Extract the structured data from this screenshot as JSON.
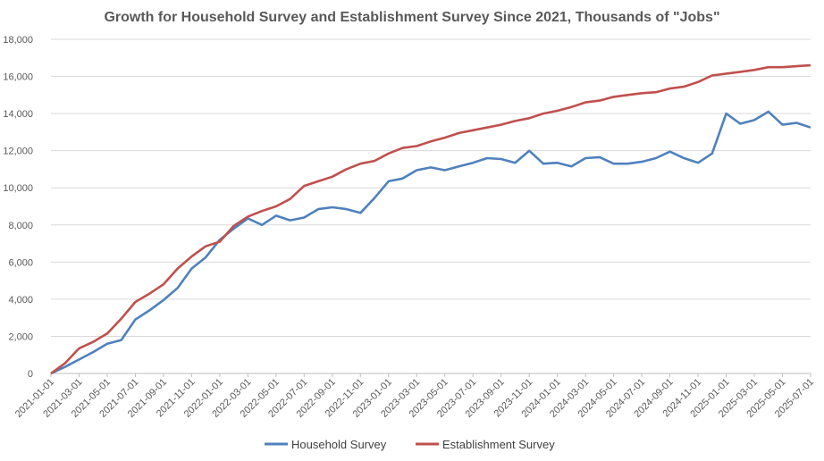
{
  "chart_data": {
    "type": "line",
    "title": "Growth for Household Survey and Establishment Survey Since 2021, Thousands of \"Jobs\"",
    "xlabel": "",
    "ylabel": "",
    "ylim": [
      0,
      18000
    ],
    "yticks": [
      "0",
      "2,000",
      "4,000",
      "6,000",
      "8,000",
      "10,000",
      "12,000",
      "14,000",
      "16,000",
      "18,000"
    ],
    "grid": true,
    "legend_position": "bottom",
    "x_tick_labels": [
      "2021-01-01",
      "2021-03-01",
      "2021-05-01",
      "2021-07-01",
      "2021-09-01",
      "2021-11-01",
      "2022-01-01",
      "2022-03-01",
      "2022-05-01",
      "2022-07-01",
      "2022-09-01",
      "2022-11-01",
      "2023-01-01",
      "2023-03-01",
      "2023-05-01",
      "2023-07-01",
      "2023-09-01",
      "2023-11-01",
      "2024-01-01",
      "2024-03-01",
      "2024-05-01",
      "2024-07-01",
      "2024-09-01",
      "2024-11-01",
      "2025-01-01",
      "2025-03-01",
      "2025-05-01",
      "2025-07-01"
    ],
    "x": [
      "2021-01",
      "2021-02",
      "2021-03",
      "2021-04",
      "2021-05",
      "2021-06",
      "2021-07",
      "2021-08",
      "2021-09",
      "2021-10",
      "2021-11",
      "2021-12",
      "2022-01",
      "2022-02",
      "2022-03",
      "2022-04",
      "2022-05",
      "2022-06",
      "2022-07",
      "2022-08",
      "2022-09",
      "2022-10",
      "2022-11",
      "2022-12",
      "2023-01",
      "2023-02",
      "2023-03",
      "2023-04",
      "2023-05",
      "2023-06",
      "2023-07",
      "2023-08",
      "2023-09",
      "2023-10",
      "2023-11",
      "2023-12",
      "2024-01",
      "2024-02",
      "2024-03",
      "2024-04",
      "2024-05",
      "2024-06",
      "2024-07",
      "2024-08",
      "2024-09",
      "2024-10",
      "2024-11",
      "2024-12",
      "2025-01",
      "2025-02",
      "2025-03",
      "2025-04",
      "2025-05",
      "2025-06",
      "2025-07"
    ],
    "series": [
      {
        "name": "Household Survey",
        "color": "#4f81bd",
        "values": [
          0,
          350,
          750,
          1150,
          1600,
          1800,
          2900,
          3400,
          3950,
          4600,
          5650,
          6250,
          7200,
          7800,
          8350,
          8000,
          8500,
          8250,
          8400,
          8850,
          8950,
          8850,
          8650,
          9450,
          10350,
          10500,
          10950,
          11100,
          10950,
          11150,
          11350,
          11600,
          11550,
          11350,
          12000,
          11300,
          11350,
          11150,
          11600,
          11650,
          11300,
          11300,
          11400,
          11600,
          11950,
          11600,
          11350,
          11850,
          14000,
          13450,
          13650,
          14100,
          13400,
          13500,
          13250
        ]
      },
      {
        "name": "Establishment Survey",
        "color": "#c0504d",
        "values": [
          0,
          550,
          1350,
          1700,
          2150,
          2950,
          3850,
          4300,
          4800,
          5650,
          6300,
          6850,
          7100,
          7950,
          8450,
          8750,
          9000,
          9400,
          10100,
          10350,
          10600,
          11000,
          11300,
          11450,
          11850,
          12150,
          12250,
          12500,
          12700,
          12950,
          13100,
          13250,
          13400,
          13600,
          13750,
          14000,
          14150,
          14350,
          14600,
          14700,
          14900,
          15000,
          15100,
          15150,
          15350,
          15450,
          15700,
          16050,
          16150,
          16250,
          16350,
          16500,
          16500,
          16550,
          16600
        ]
      }
    ]
  }
}
